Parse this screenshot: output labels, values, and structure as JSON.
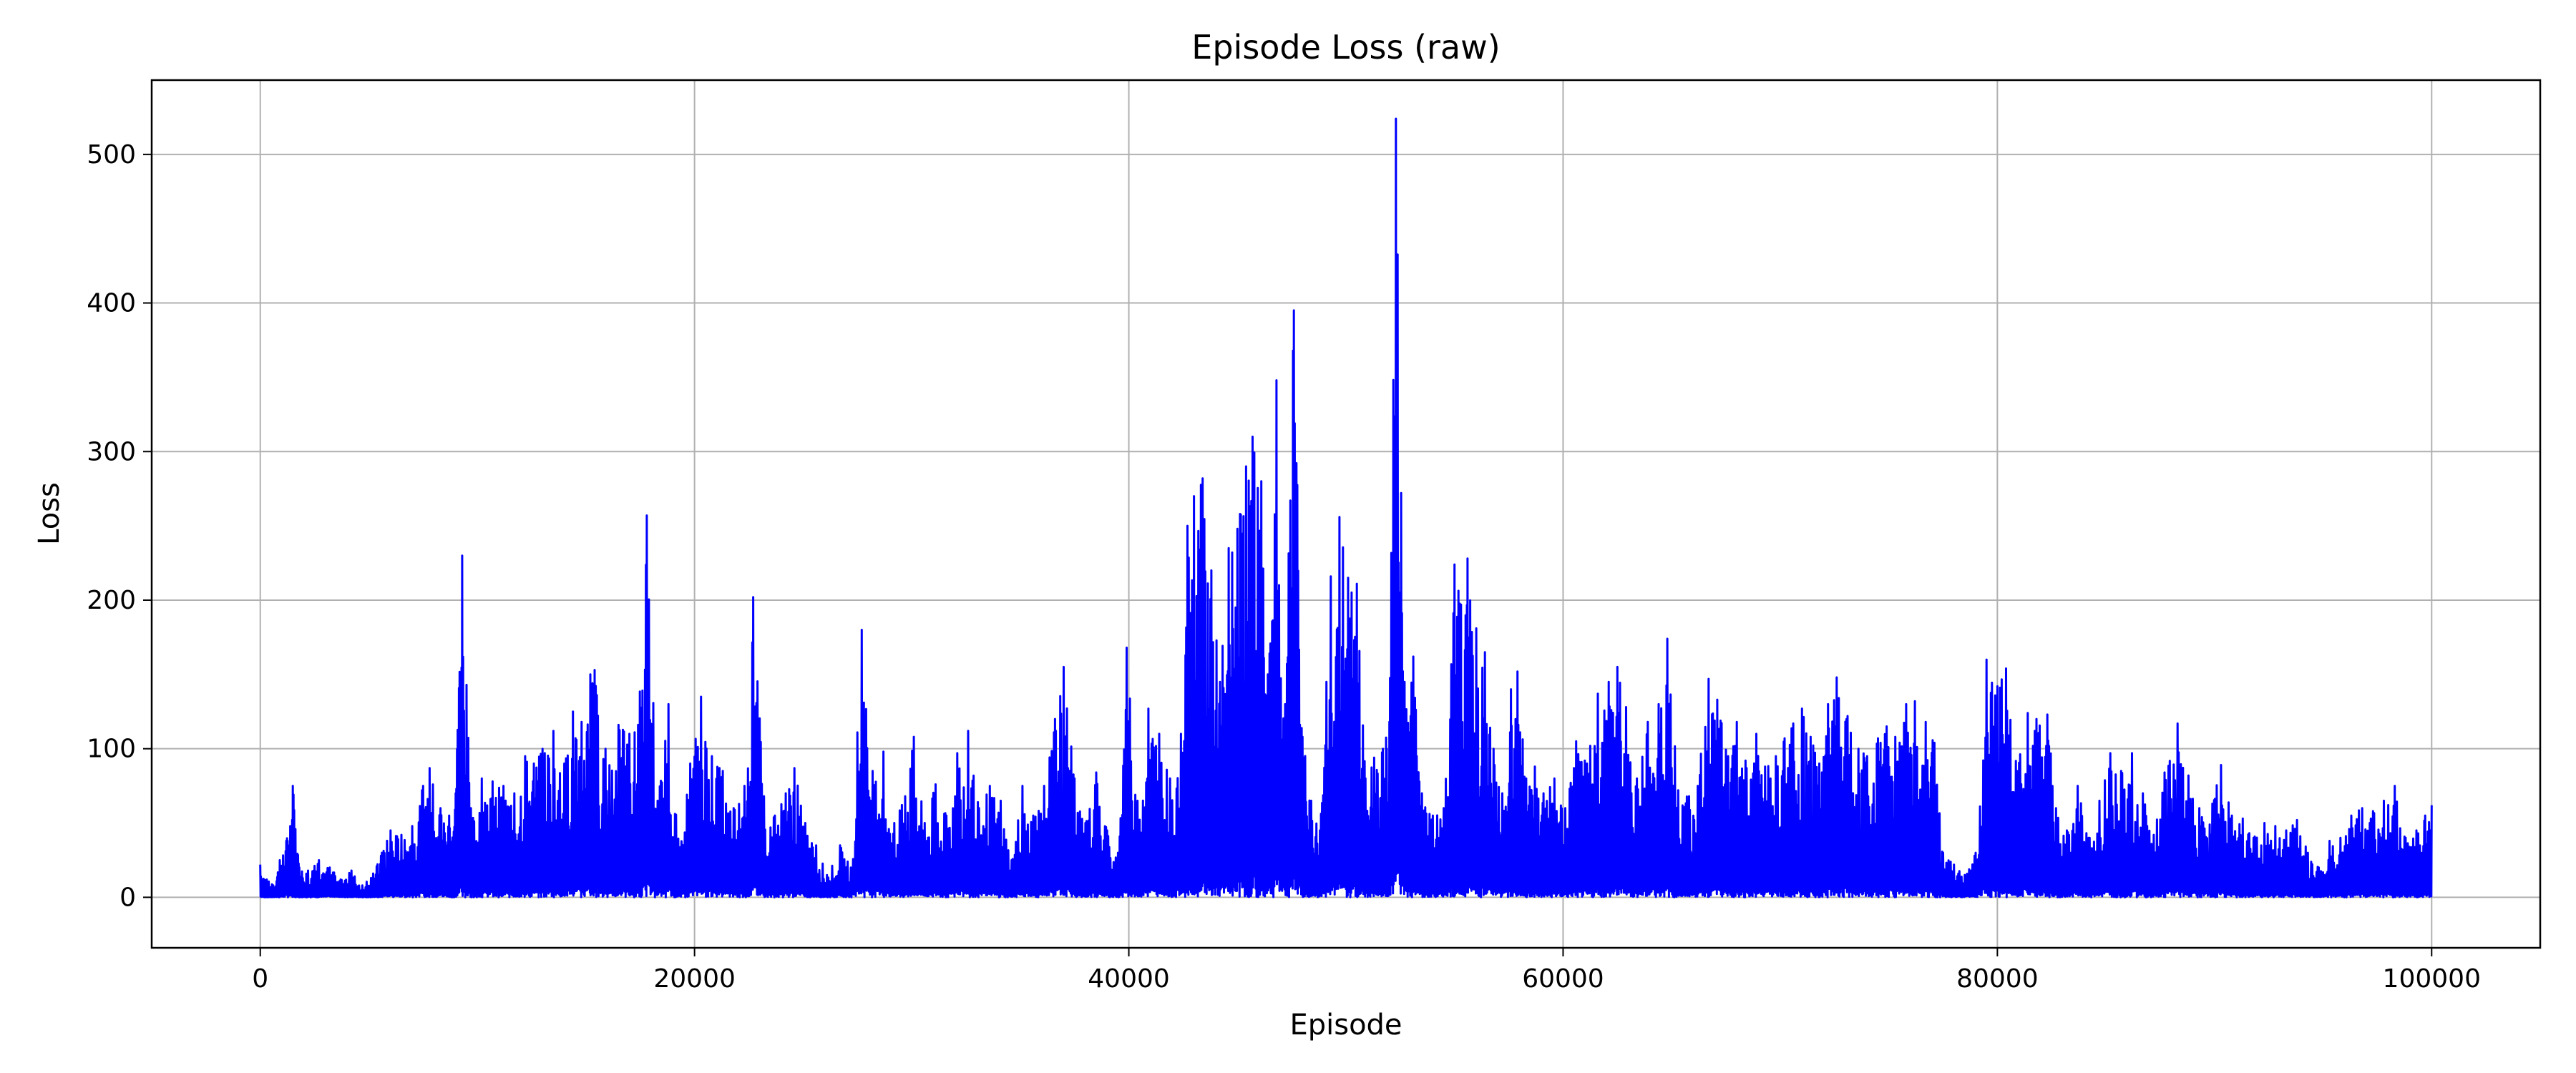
{
  "chart_data": {
    "type": "line",
    "title": "Episode Loss (raw)",
    "xlabel": "Episode",
    "ylabel": "Loss",
    "xlim": [
      -5000,
      105000
    ],
    "ylim": [
      -34,
      550
    ],
    "grid": true,
    "line_color": "#0000ff",
    "xticks": [
      0,
      20000,
      40000,
      60000,
      80000,
      100000
    ],
    "xtick_labels": [
      "0",
      "20000",
      "40000",
      "60000",
      "80000",
      "100000"
    ],
    "yticks": [
      0,
      100,
      200,
      300,
      400,
      500
    ],
    "ytick_labels": [
      "0",
      "100",
      "200",
      "300",
      "400",
      "500"
    ],
    "series": [
      {
        "points": [
          [
            0,
            22
          ],
          [
            300,
            12
          ],
          [
            600,
            8
          ],
          [
            900,
            25
          ],
          [
            1200,
            38
          ],
          [
            1500,
            75
          ],
          [
            1800,
            20
          ],
          [
            2200,
            18
          ],
          [
            2700,
            25
          ],
          [
            3200,
            20
          ],
          [
            3700,
            12
          ],
          [
            4200,
            18
          ],
          [
            4700,
            8
          ],
          [
            5200,
            16
          ],
          [
            5600,
            30
          ],
          [
            6000,
            45
          ],
          [
            6500,
            42
          ],
          [
            7000,
            48
          ],
          [
            7500,
            75
          ],
          [
            7800,
            87
          ],
          [
            8300,
            60
          ],
          [
            8700,
            55
          ],
          [
            9000,
            70
          ],
          [
            9300,
            230
          ],
          [
            9700,
            60
          ],
          [
            10200,
            80
          ],
          [
            10700,
            78
          ],
          [
            11200,
            75
          ],
          [
            11700,
            70
          ],
          [
            12200,
            95
          ],
          [
            12600,
            90
          ],
          [
            13000,
            100
          ],
          [
            13500,
            112
          ],
          [
            14000,
            90
          ],
          [
            14400,
            125
          ],
          [
            14800,
            118
          ],
          [
            15200,
            150
          ],
          [
            15400,
            153
          ],
          [
            15900,
            100
          ],
          [
            16500,
            116
          ],
          [
            17000,
            110
          ],
          [
            17400,
            116
          ],
          [
            17800,
            257
          ],
          [
            18300,
            65
          ],
          [
            18800,
            130
          ],
          [
            19300,
            30
          ],
          [
            19800,
            90
          ],
          [
            20300,
            135
          ],
          [
            20800,
            95
          ],
          [
            21300,
            85
          ],
          [
            21800,
            60
          ],
          [
            22300,
            75
          ],
          [
            22700,
            202
          ],
          [
            23200,
            68
          ],
          [
            23700,
            55
          ],
          [
            24200,
            70
          ],
          [
            24600,
            87
          ],
          [
            25100,
            50
          ],
          [
            25600,
            35
          ],
          [
            26100,
            15
          ],
          [
            26700,
            35
          ],
          [
            27200,
            20
          ],
          [
            27700,
            180
          ],
          [
            28200,
            85
          ],
          [
            28700,
            98
          ],
          [
            29200,
            50
          ],
          [
            29700,
            68
          ],
          [
            30100,
            108
          ],
          [
            30600,
            50
          ],
          [
            31100,
            76
          ],
          [
            31600,
            55
          ],
          [
            32100,
            97
          ],
          [
            32600,
            112
          ],
          [
            33100,
            60
          ],
          [
            33600,
            75
          ],
          [
            34100,
            65
          ],
          [
            34600,
            25
          ],
          [
            35100,
            75
          ],
          [
            35600,
            55
          ],
          [
            36100,
            75
          ],
          [
            36600,
            120
          ],
          [
            37000,
            155
          ],
          [
            37500,
            80
          ],
          [
            38000,
            50
          ],
          [
            38500,
            84
          ],
          [
            39000,
            45
          ],
          [
            39500,
            30
          ],
          [
            39900,
            168
          ],
          [
            40400,
            65
          ],
          [
            40900,
            127
          ],
          [
            41400,
            110
          ],
          [
            41900,
            80
          ],
          [
            42400,
            110
          ],
          [
            42700,
            250
          ],
          [
            43000,
            270
          ],
          [
            43400,
            282
          ],
          [
            43800,
            220
          ],
          [
            44200,
            145
          ],
          [
            44600,
            235
          ],
          [
            45000,
            248
          ],
          [
            45400,
            290
          ],
          [
            45700,
            310
          ],
          [
            46100,
            280
          ],
          [
            46400,
            150
          ],
          [
            46800,
            348
          ],
          [
            47200,
            130
          ],
          [
            47600,
            395
          ],
          [
            48000,
            108
          ],
          [
            48400,
            65
          ],
          [
            48800,
            45
          ],
          [
            49300,
            216
          ],
          [
            49700,
            256
          ],
          [
            50100,
            215
          ],
          [
            50500,
            211
          ],
          [
            50900,
            80
          ],
          [
            51300,
            94
          ],
          [
            51700,
            100
          ],
          [
            52000,
            118
          ],
          [
            52300,
            524
          ],
          [
            52700,
            145
          ],
          [
            53100,
            162
          ],
          [
            53500,
            70
          ],
          [
            54000,
            55
          ],
          [
            54500,
            60
          ],
          [
            55000,
            224
          ],
          [
            55300,
            197
          ],
          [
            55600,
            228
          ],
          [
            56000,
            181
          ],
          [
            56400,
            165
          ],
          [
            56800,
            100
          ],
          [
            57200,
            70
          ],
          [
            57600,
            140
          ],
          [
            57900,
            152
          ],
          [
            58300,
            80
          ],
          [
            58700,
            88
          ],
          [
            59100,
            70
          ],
          [
            59600,
            80
          ],
          [
            60100,
            60
          ],
          [
            60600,
            105
          ],
          [
            61100,
            90
          ],
          [
            61600,
            137
          ],
          [
            62100,
            145
          ],
          [
            62500,
            155
          ],
          [
            62900,
            128
          ],
          [
            63400,
            80
          ],
          [
            63900,
            118
          ],
          [
            64400,
            130
          ],
          [
            64800,
            174
          ],
          [
            65300,
            72
          ],
          [
            65800,
            68
          ],
          [
            66200,
            75
          ],
          [
            66700,
            147
          ],
          [
            67100,
            133
          ],
          [
            67600,
            95
          ],
          [
            68000,
            118
          ],
          [
            68400,
            92
          ],
          [
            68900,
            110
          ],
          [
            69300,
            88
          ],
          [
            69800,
            95
          ],
          [
            70200,
            107
          ],
          [
            70600,
            117
          ],
          [
            71000,
            127
          ],
          [
            71400,
            108
          ],
          [
            71800,
            90
          ],
          [
            72200,
            130
          ],
          [
            72600,
            148
          ],
          [
            73100,
            122
          ],
          [
            73600,
            100
          ],
          [
            74000,
            95
          ],
          [
            74500,
            107
          ],
          [
            74900,
            115
          ],
          [
            75300,
            108
          ],
          [
            75800,
            130
          ],
          [
            76200,
            132
          ],
          [
            76700,
            118
          ],
          [
            77100,
            104
          ],
          [
            77500,
            30
          ],
          [
            78000,
            22
          ],
          [
            78500,
            15
          ],
          [
            79000,
            30
          ],
          [
            79500,
            160
          ],
          [
            80000,
            142
          ],
          [
            80400,
            154
          ],
          [
            80900,
            85
          ],
          [
            81400,
            124
          ],
          [
            81800,
            120
          ],
          [
            82300,
            123
          ],
          [
            82700,
            60
          ],
          [
            83200,
            45
          ],
          [
            83700,
            75
          ],
          [
            84200,
            40
          ],
          [
            84700,
            65
          ],
          [
            85200,
            97
          ],
          [
            85700,
            85
          ],
          [
            86200,
            97
          ],
          [
            86700,
            70
          ],
          [
            87200,
            42
          ],
          [
            87700,
            84
          ],
          [
            88300,
            117
          ],
          [
            88800,
            82
          ],
          [
            89300,
            60
          ],
          [
            89900,
            63
          ],
          [
            90300,
            89
          ],
          [
            90800,
            55
          ],
          [
            91300,
            53
          ],
          [
            91800,
            40
          ],
          [
            92300,
            50
          ],
          [
            92800,
            48
          ],
          [
            93300,
            45
          ],
          [
            93800,
            52
          ],
          [
            94300,
            30
          ],
          [
            94800,
            20
          ],
          [
            95300,
            38
          ],
          [
            95800,
            40
          ],
          [
            96300,
            55
          ],
          [
            96800,
            60
          ],
          [
            97300,
            58
          ],
          [
            97800,
            65
          ],
          [
            98300,
            75
          ],
          [
            98800,
            40
          ],
          [
            99300,
            45
          ],
          [
            99700,
            55
          ],
          [
            100000,
            62
          ]
        ]
      }
    ]
  }
}
